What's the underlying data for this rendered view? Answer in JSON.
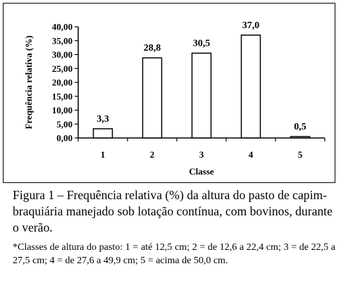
{
  "chart_data": {
    "type": "bar",
    "categories": [
      "1",
      "2",
      "3",
      "4",
      "5"
    ],
    "values": [
      3.3,
      28.8,
      30.5,
      37.0,
      0.5
    ],
    "value_labels": [
      "3,3",
      "28,8",
      "30,5",
      "37,0",
      "0,5"
    ],
    "xlabel": "Classe",
    "ylabel": "Frequência relativa (%)",
    "ylim": [
      0,
      40
    ],
    "yticks": [
      0,
      5,
      10,
      15,
      20,
      25,
      30,
      35,
      40
    ],
    "ytick_labels": [
      "0,00",
      "5,00",
      "10,00",
      "15,00",
      "20,00",
      "25,00",
      "30,00",
      "35,00",
      "40,00"
    ],
    "grid": false,
    "legend": "none",
    "colors": {
      "bar_fill": "#ffffff",
      "bar_stroke": "#000000",
      "axis": "#000000"
    }
  },
  "caption": "Figura 1 – Frequência relativa (%) da altura do pasto de capim-braquiária manejado sob lotação contínua, com bovinos, durante o verão.",
  "footnote": "*Classes de altura do pasto: 1 = até 12,5 cm; 2 = de 12,6 a 22,4 cm; 3 = de 22,5 a 27,5 cm; 4 = de 27,6 a 49,9 cm; 5 = acima de 50,0 cm."
}
